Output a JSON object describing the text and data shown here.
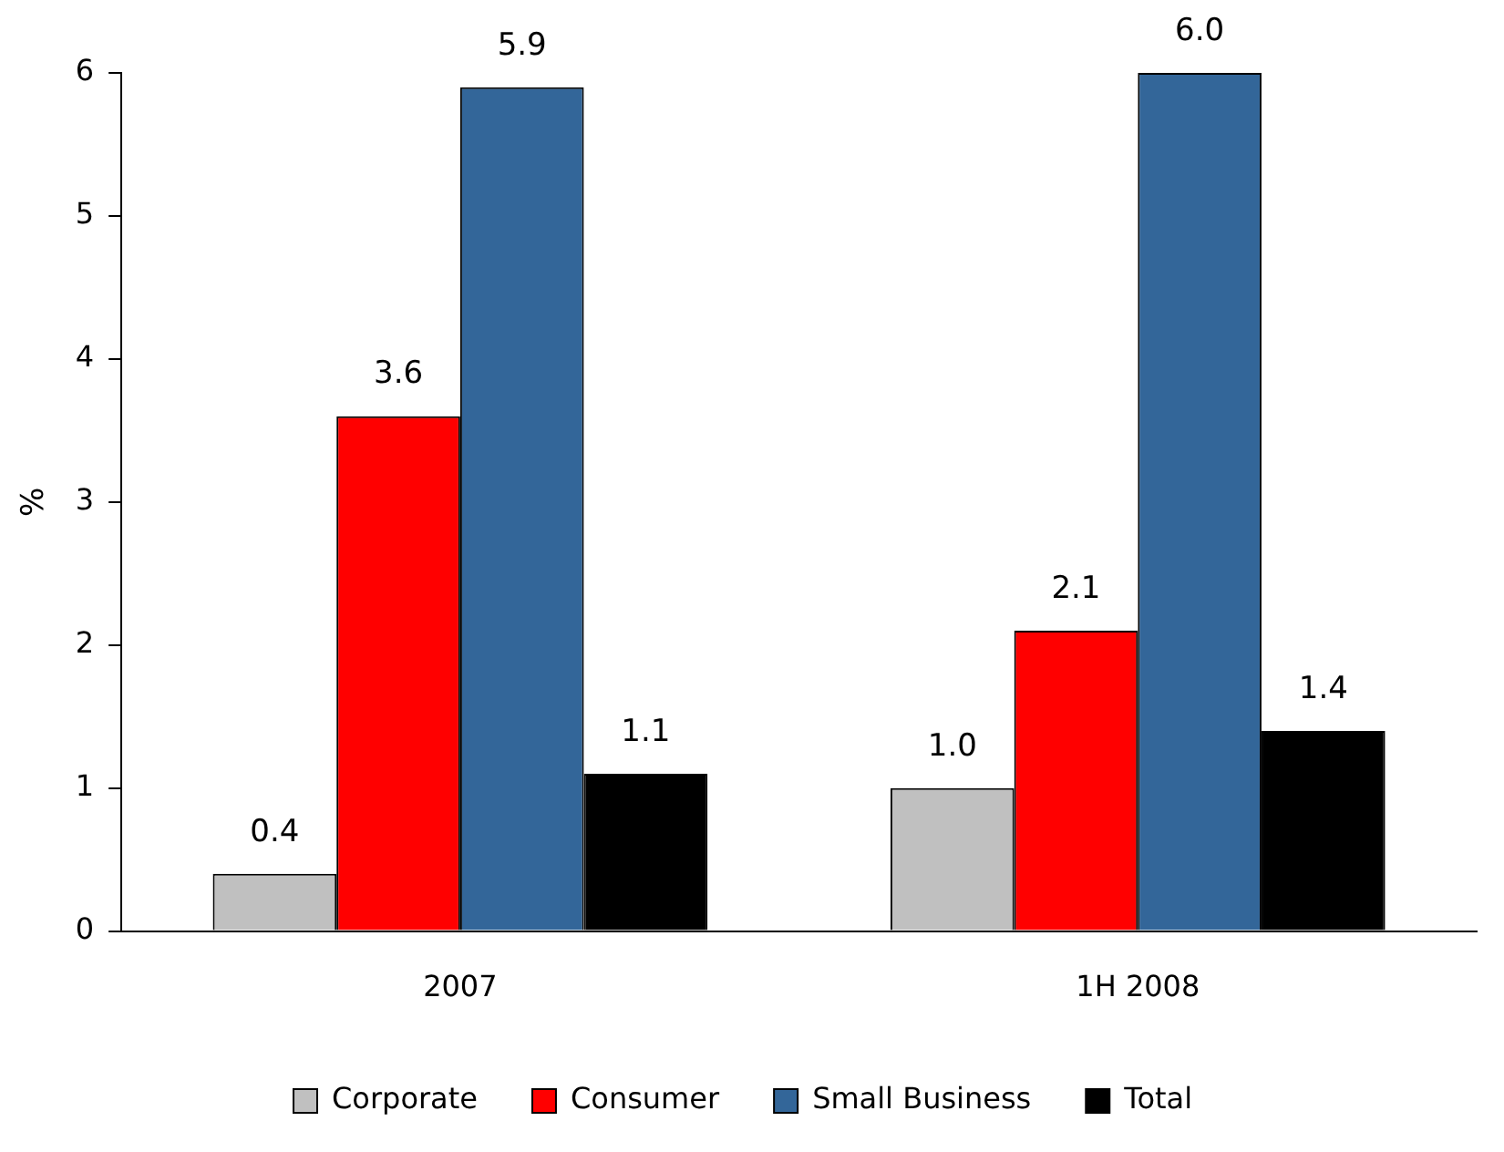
{
  "chart_data": {
    "type": "bar",
    "ylabel": "%",
    "categories": [
      "2007",
      "1H 2008"
    ],
    "series": [
      {
        "name": "Corporate",
        "color": "#c0c0c0",
        "values": [
          0.4,
          1.0
        ],
        "value_labels": [
          "0.4",
          "1.0"
        ]
      },
      {
        "name": "Consumer",
        "color": "#ff0000",
        "values": [
          3.6,
          2.1
        ],
        "value_labels": [
          "3.6",
          "2.1"
        ]
      },
      {
        "name": "Small Business",
        "color": "#336699",
        "values": [
          5.9,
          6.0
        ],
        "value_labels": [
          "5.9",
          "6.0"
        ]
      },
      {
        "name": "Total",
        "color": "#000000",
        "values": [
          1.1,
          1.4
        ],
        "value_labels": [
          "1.1",
          "1.4"
        ]
      }
    ],
    "ylim": [
      0,
      6
    ],
    "yticks": [
      0,
      1,
      2,
      3,
      4,
      5,
      6
    ],
    "grid": false,
    "legend": "bottom"
  }
}
